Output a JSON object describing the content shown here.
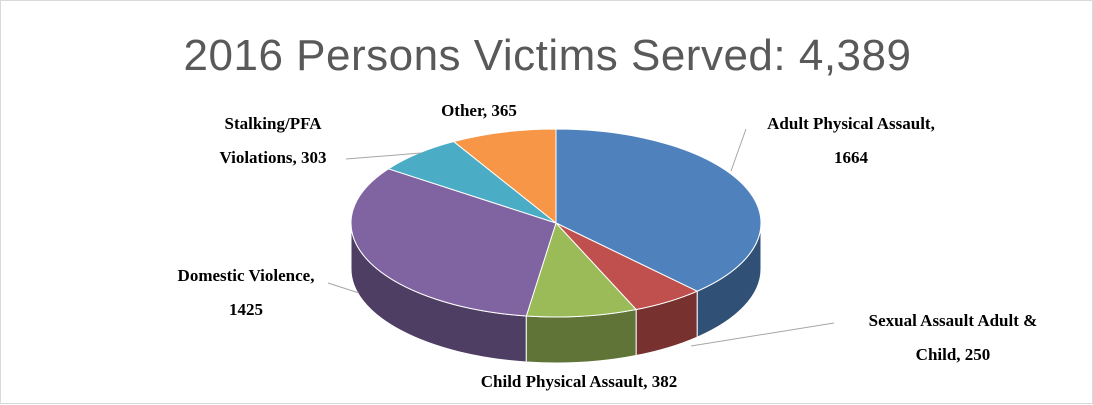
{
  "chart_data": {
    "type": "pie",
    "title": "2016 Persons Victims Served: 4,389",
    "slices": [
      {
        "name": "Adult Physical Assault",
        "value": 1664,
        "color": "#4f81bd",
        "label_lines": [
          "Adult Physical Assault,",
          "1664"
        ]
      },
      {
        "name": "Sexual Assault Adult & Child",
        "value": 250,
        "color": "#c0504d",
        "label_lines": [
          "Sexual Assault Adult &",
          "Child, 250"
        ]
      },
      {
        "name": "Child Physical Assault",
        "value": 382,
        "color": "#9bbb59",
        "label_lines": [
          "Child Physical Assault, 382"
        ]
      },
      {
        "name": "Domestic Violence",
        "value": 1425,
        "color": "#8064a2",
        "label_lines": [
          "Domestic Violence,",
          "1425"
        ]
      },
      {
        "name": "Stalking/PFA Violations",
        "value": 303,
        "color": "#4bacc6",
        "label_lines": [
          "Stalking/PFA",
          "Violations, 303"
        ]
      },
      {
        "name": "Other",
        "value": 365,
        "color": "#f79646",
        "label_lines": [
          "Other, 365"
        ]
      }
    ],
    "style": "3d-pie",
    "legend": "none"
  }
}
